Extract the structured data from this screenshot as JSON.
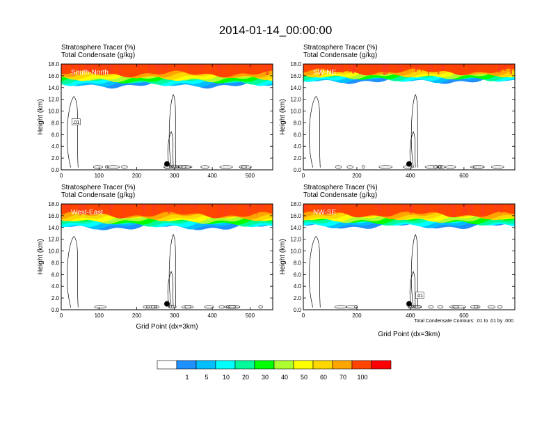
{
  "figure": {
    "title": "2014-01-14_00:00:00",
    "footnote": "Total Condensate Contours: .01 to .01 by .000",
    "colorbar": {
      "colors": [
        "#ffffff",
        "#1e90ff",
        "#00bfff",
        "#00ffff",
        "#00fa9a",
        "#00ff00",
        "#adff2f",
        "#ffff00",
        "#ffd700",
        "#ffa500",
        "#ff4500",
        "#ff0000"
      ],
      "labels": [
        "1",
        "5",
        "10",
        "20",
        "30",
        "40",
        "50",
        "60",
        "70",
        "100"
      ]
    }
  },
  "chart_data": [
    {
      "type": "contour",
      "panel_label": "South-North",
      "line1": "Stratosphere Tracer   (%)",
      "line2": "Total Condensate   (g/kg)",
      "ylabel": "Height (km)",
      "xlabel": "",
      "ylim": [
        0,
        18
      ],
      "yticks": [
        "0.0",
        "2.0",
        "4.0",
        "6.0",
        "8.0",
        "10.0",
        "12.0",
        "14.0",
        "16.0",
        "18.0"
      ],
      "xlim": [
        0,
        560
      ],
      "xticks": [
        0,
        100,
        200,
        300,
        400,
        500
      ],
      "tracer_base_km": 14.2,
      "marker_x": 280,
      "marker_y": 1.0,
      "contour_label": ".01"
    },
    {
      "type": "contour",
      "panel_label": "SW-NE",
      "line1": "Stratosphere Tracer   (%)",
      "line2": "Total Condensate   (g/kg)",
      "ylabel": "Height (km)",
      "xlabel": "",
      "ylim": [
        0,
        18
      ],
      "yticks": [
        "0.0",
        "2.0",
        "4.0",
        "6.0",
        "8.0",
        "10.0",
        "12.0",
        "14.0",
        "16.0",
        "18.0"
      ],
      "xlim": [
        0,
        790
      ],
      "xticks": [
        0,
        200,
        400,
        600
      ],
      "tracer_base_km": 15.0,
      "marker_x": 395,
      "marker_y": 1.0,
      "contour_label": ""
    },
    {
      "type": "contour",
      "panel_label": "West-East",
      "line1": "Stratosphere Tracer   (%)",
      "line2": "Total Condensate   (g/kg)",
      "ylabel": "Height (km)",
      "xlabel": "Grid Point (dx=3km)",
      "ylim": [
        0,
        18
      ],
      "yticks": [
        "0.0",
        "2.0",
        "4.0",
        "6.0",
        "8.0",
        "10.0",
        "12.0",
        "14.0",
        "16.0",
        "18.0"
      ],
      "xlim": [
        0,
        560
      ],
      "xticks": [
        0,
        100,
        200,
        300,
        400,
        500
      ],
      "tracer_base_km": 13.8,
      "marker_x": 280,
      "marker_y": 1.0,
      "contour_label": ""
    },
    {
      "type": "contour",
      "panel_label": "NW-SE",
      "line1": "Stratosphere Tracer   (%)",
      "line2": "Total Condensate   (g/kg)",
      "ylabel": "Height (km)",
      "xlabel": "Grid Point (dx=3km)",
      "ylim": [
        0,
        18
      ],
      "yticks": [
        "0.0",
        "2.0",
        "4.0",
        "6.0",
        "8.0",
        "10.0",
        "12.0",
        "14.0",
        "16.0",
        "18.0"
      ],
      "xlim": [
        0,
        790
      ],
      "xticks": [
        0,
        200,
        400,
        600
      ],
      "tracer_base_km": 14.0,
      "marker_x": 395,
      "marker_y": 1.0,
      "contour_label": ".01"
    }
  ]
}
